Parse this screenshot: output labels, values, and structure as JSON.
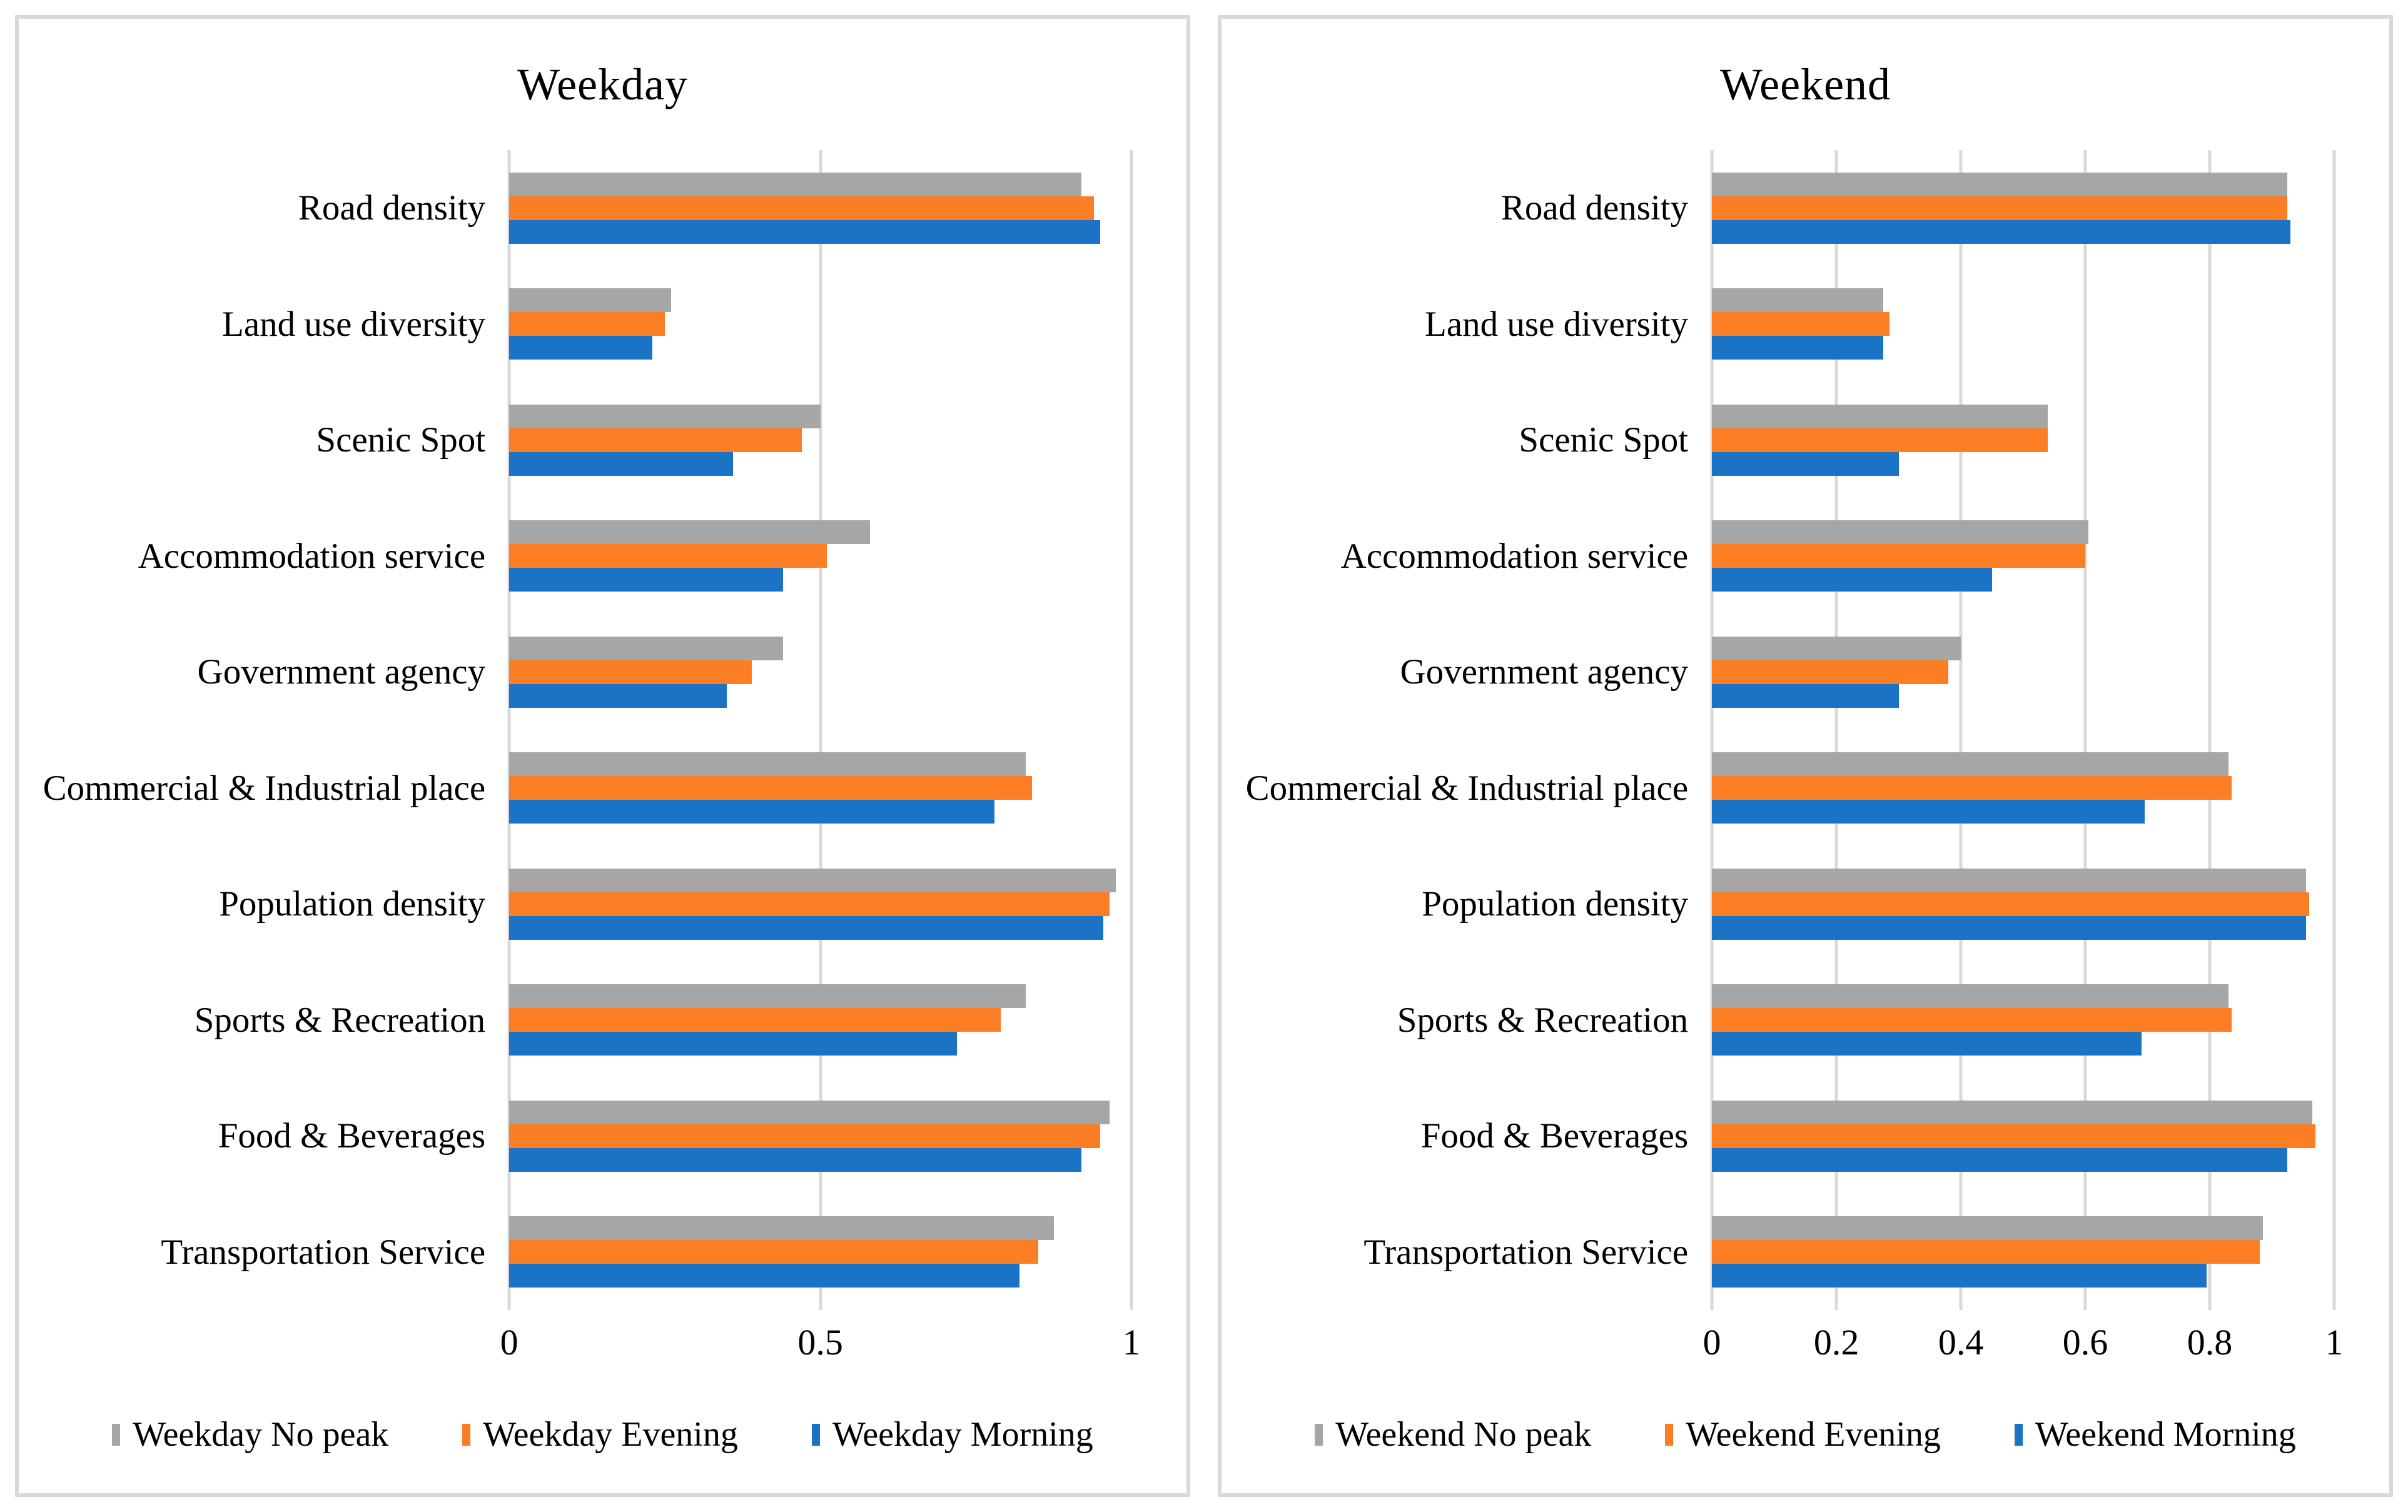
{
  "colors": {
    "no_peak_gray": "#A6A6A6",
    "evening_orange": "#FC7E24",
    "morning_blue": "#1A73C5",
    "gridline": "#D9D9D9",
    "panel_border": "#D9D9D9",
    "text": "#000000"
  },
  "chart_data": [
    {
      "type": "bar",
      "orientation": "horizontal",
      "title": "Weekday",
      "grid": true,
      "legend_position": "bottom",
      "xlim": [
        0,
        1
      ],
      "x_ticks": [
        0,
        0.5,
        1
      ],
      "x_tick_labels": [
        "0",
        "0.5",
        "1"
      ],
      "categories": [
        "Road density",
        "Land use diversity",
        "Scenic Spot",
        "Accommodation service",
        "Government agency",
        "Commercial & Industrial place",
        "Population density",
        "Sports & Recreation",
        "Food & Beverages",
        "Transportation Service"
      ],
      "series": [
        {
          "name": "Weekday No peak",
          "color": "#A6A6A6",
          "values": [
            0.92,
            0.26,
            0.5,
            0.58,
            0.44,
            0.83,
            0.975,
            0.83,
            0.965,
            0.875
          ]
        },
        {
          "name": "Weekday Evening",
          "color": "#FC7E24",
          "values": [
            0.94,
            0.25,
            0.47,
            0.51,
            0.39,
            0.84,
            0.965,
            0.79,
            0.95,
            0.85
          ]
        },
        {
          "name": "Weekday Morning",
          "color": "#1A73C5",
          "values": [
            0.95,
            0.23,
            0.36,
            0.44,
            0.35,
            0.78,
            0.955,
            0.72,
            0.92,
            0.82
          ]
        }
      ]
    },
    {
      "type": "bar",
      "orientation": "horizontal",
      "title": "Weekend",
      "grid": true,
      "legend_position": "bottom",
      "xlim": [
        0,
        1
      ],
      "x_ticks": [
        0,
        0.2,
        0.4,
        0.6,
        0.8,
        1
      ],
      "x_tick_labels": [
        "0",
        "0.2",
        "0.4",
        "0.6",
        "0.8",
        "1"
      ],
      "categories": [
        "Road density",
        "Land use diversity",
        "Scenic Spot",
        "Accommodation service",
        "Government agency",
        "Commercial & Industrial place",
        "Population density",
        "Sports & Recreation",
        "Food & Beverages",
        "Transportation Service"
      ],
      "series": [
        {
          "name": "Weekend No peak",
          "color": "#A6A6A6",
          "values": [
            0.925,
            0.275,
            0.54,
            0.605,
            0.4,
            0.83,
            0.955,
            0.83,
            0.965,
            0.885
          ]
        },
        {
          "name": "Weekend Evening",
          "color": "#FC7E24",
          "values": [
            0.925,
            0.285,
            0.54,
            0.6,
            0.38,
            0.835,
            0.96,
            0.835,
            0.97,
            0.88
          ]
        },
        {
          "name": "Weekend Morning",
          "color": "#1A73C5",
          "values": [
            0.93,
            0.275,
            0.3,
            0.45,
            0.3,
            0.695,
            0.955,
            0.69,
            0.925,
            0.795
          ]
        }
      ]
    }
  ]
}
